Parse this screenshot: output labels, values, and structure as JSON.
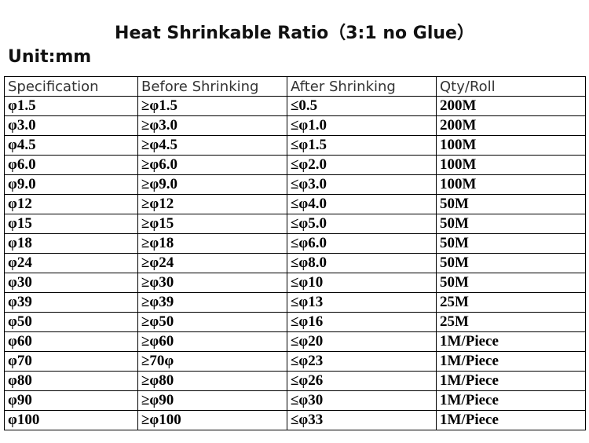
{
  "header": {
    "title": "Heat Shrinkable Ratio（3:1 no Glue）",
    "unit": "Unit:mm"
  },
  "table": {
    "columns": [
      "Specification",
      "Before Shrinking",
      "After Shrinking",
      "Qty/Roll"
    ],
    "rows": [
      [
        "φ1.5",
        "≥φ1.5",
        "≤0.5",
        "200M"
      ],
      [
        "φ3.0",
        "≥φ3.0",
        "≤φ1.0",
        "200M"
      ],
      [
        "φ4.5",
        "≥φ4.5",
        "≤φ1.5",
        "100M"
      ],
      [
        "φ6.0",
        "≥φ6.0",
        "≤φ2.0",
        "100M"
      ],
      [
        "φ9.0",
        "≥φ9.0",
        "≤φ3.0",
        "100M"
      ],
      [
        "φ12",
        "≥φ12",
        "≤φ4.0",
        "50M"
      ],
      [
        "φ15",
        "≥φ15",
        "≤φ5.0",
        "50M"
      ],
      [
        "φ18",
        "≥φ18",
        "≤φ6.0",
        "50M"
      ],
      [
        "φ24",
        "≥φ24",
        "≤φ8.0",
        "50M"
      ],
      [
        "φ30",
        "≥φ30",
        "≤φ10",
        "50M"
      ],
      [
        "φ39",
        "≥φ39",
        "≤φ13",
        "25M"
      ],
      [
        "φ50",
        "≥φ50",
        "≤φ16",
        "25M"
      ],
      [
        "φ60",
        "≥φ60",
        "≤φ20",
        "1M/Piece"
      ],
      [
        "φ70",
        "≥70φ",
        "≤φ23",
        "1M/Piece"
      ],
      [
        "φ80",
        "≥φ80",
        "≤φ26",
        "1M/Piece"
      ],
      [
        "φ90",
        "≥φ90",
        "≤φ30",
        "1M/Piece"
      ],
      [
        "φ100",
        "≥φ100",
        "≤φ33",
        "1M/Piece"
      ]
    ]
  }
}
